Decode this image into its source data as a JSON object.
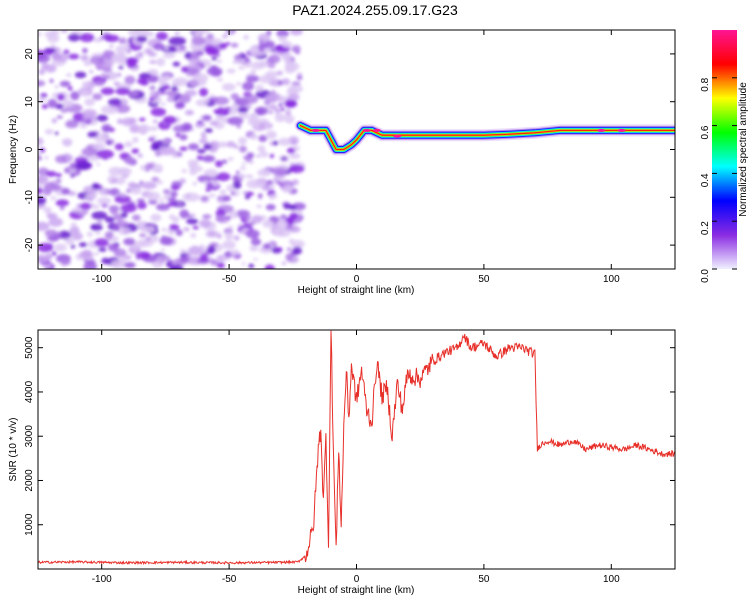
{
  "title": "PAZ1.2024.255.09.17.G23",
  "chart_data": [
    {
      "type": "heatmap",
      "name": "spectrogram",
      "xlabel": "Height of straight line (km)",
      "ylabel": "Frequency (Hz)",
      "xlim": [
        -125,
        125
      ],
      "ylim": [
        -25,
        25
      ],
      "xticks": [
        -100,
        -50,
        0,
        50,
        100
      ],
      "xtick_labels": [
        "-100",
        "-50",
        "0",
        "50",
        "100"
      ],
      "yticks": [
        -20,
        -10,
        0,
        10,
        20
      ],
      "ytick_labels": [
        "-20",
        "-10",
        "0",
        "10",
        "20"
      ],
      "colorbar": {
        "label": "Normalized spectral amplitude",
        "range": [
          0,
          1
        ],
        "ticks": [
          0.0,
          0.2,
          0.4,
          0.6,
          0.8
        ],
        "tick_labels": [
          "0.0",
          "0.2",
          "0.4",
          "0.6",
          "0.8"
        ],
        "colormap": [
          "#f0f0ff",
          "#8a2be2",
          "#0000ff",
          "#00ffff",
          "#00ff00",
          "#ffff00",
          "#ff0000",
          "#ff1493"
        ]
      },
      "noise_region_x": [
        -125,
        -22
      ],
      "ridge": {
        "x": [
          -22,
          -18,
          -15,
          -12,
          -10,
          -8,
          -5,
          -2,
          0,
          3,
          6,
          10,
          15,
          20,
          30,
          40,
          50,
          60,
          70,
          80,
          90,
          100,
          110,
          125
        ],
        "freq": [
          5,
          4,
          4,
          4,
          2,
          0,
          0,
          1,
          2,
          4,
          4,
          3,
          3,
          3,
          3,
          3,
          3,
          3.2,
          3.5,
          4,
          4,
          4,
          4,
          4
        ]
      }
    },
    {
      "type": "line",
      "name": "snr",
      "xlabel": "Height of straight line (km)",
      "ylabel": "SNR (10 * v/v)",
      "xlim": [
        -125,
        125
      ],
      "ylim": [
        0,
        5400
      ],
      "xticks": [
        -100,
        -50,
        0,
        50,
        100
      ],
      "xtick_labels": [
        "-100",
        "-50",
        "0",
        "50",
        "100"
      ],
      "yticks": [
        1000,
        2000,
        3000,
        4000,
        5000
      ],
      "ytick_labels": [
        "1000",
        "2000",
        "3000",
        "4000",
        "5000"
      ],
      "color": "#e8302a",
      "series": [
        {
          "x": [
            -125,
            -110,
            -90,
            -70,
            -50,
            -30,
            -23,
            -20,
            -17,
            -15,
            -14,
            -13,
            -12,
            -11,
            -10,
            -9,
            -8,
            -7,
            -6,
            -5,
            -4,
            -3,
            -2,
            0,
            2,
            4,
            6,
            8,
            10,
            12,
            14,
            16,
            18,
            20,
            25,
            30,
            35,
            40,
            42,
            45,
            50,
            55,
            60,
            65,
            70,
            71,
            72,
            75,
            80,
            85,
            90,
            95,
            100,
            105,
            110,
            115,
            120,
            125
          ],
          "y": [
            150,
            160,
            140,
            150,
            140,
            150,
            160,
            300,
            900,
            2700,
            3200,
            1500,
            3000,
            600,
            5400,
            2500,
            400,
            2800,
            900,
            3200,
            4500,
            3400,
            4600,
            3800,
            4500,
            3600,
            3300,
            4700,
            3900,
            4100,
            3000,
            4200,
            3600,
            4400,
            4300,
            4700,
            4900,
            5000,
            5300,
            5000,
            5100,
            4800,
            5000,
            5000,
            4850,
            2700,
            2800,
            2900,
            2800,
            2900,
            2700,
            2800,
            2750,
            2700,
            2800,
            2700,
            2600,
            2600
          ]
        }
      ]
    }
  ]
}
